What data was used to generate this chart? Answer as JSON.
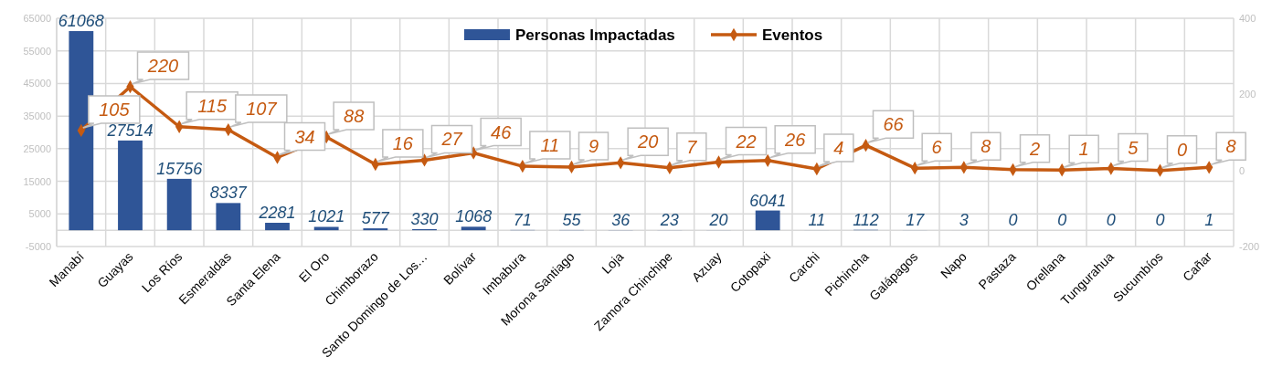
{
  "chart_data": {
    "type": "bar",
    "categories": [
      "Manabí",
      "Guayas",
      "Los Ríos",
      "Esmeraldas",
      "Santa Elena",
      "El Oro",
      "Chimborazo",
      "Santo Domingo de Los…",
      "Bolívar",
      "Imbabura",
      "Morona Santiago",
      "Loja",
      "Zamora Chinchipe",
      "Azuay",
      "Cotopaxi",
      "Carchi",
      "Pichincha",
      "Galápagos",
      "Napo",
      "Pastaza",
      "Orellana",
      "Tungurahua",
      "Sucumbíos",
      "Cañar"
    ],
    "series": [
      {
        "name": "Personas Impactadas",
        "color": "#2f5597",
        "values": [
          61068,
          27514,
          15756,
          8337,
          2281,
          1021,
          577,
          330,
          1068,
          71,
          55,
          36,
          23,
          20,
          6041,
          11,
          112,
          17,
          3,
          0,
          0,
          0,
          0,
          1
        ]
      },
      {
        "name": "Eventos",
        "type": "line",
        "axis": "y2",
        "color": "#c55a11",
        "values": [
          105,
          220,
          115,
          107,
          34,
          88,
          16,
          27,
          46,
          11,
          9,
          20,
          7,
          22,
          26,
          4,
          66,
          6,
          8,
          2,
          1,
          5,
          0,
          8
        ]
      }
    ],
    "ylim": [
      -5000,
      65000
    ],
    "yticks": [
      -5000,
      5000,
      15000,
      25000,
      35000,
      45000,
      55000,
      65000
    ],
    "y2lim": [
      -200,
      400
    ],
    "y2ticks": [
      -200,
      0,
      200,
      400
    ],
    "grid": true,
    "legend": "top",
    "marker": "diamond",
    "line_style": "solid",
    "data_labels": true
  }
}
